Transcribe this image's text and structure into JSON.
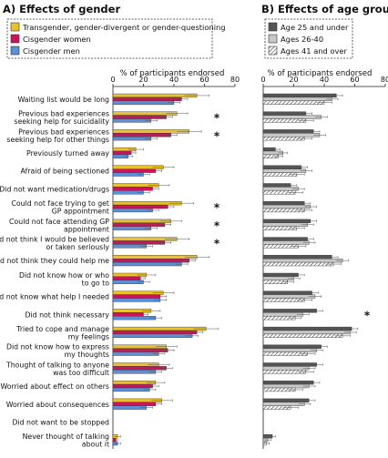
{
  "chart_data": [
    {
      "type": "bar",
      "panel_label": "A)",
      "title": "Effects of gender",
      "xlabel": "% of participants endorsed",
      "xlim": [
        0,
        80
      ],
      "xticks": [
        "0",
        "20",
        "40",
        "60",
        "80"
      ],
      "legend_position": "top",
      "categories": [
        "Waiting list would be long",
        "Previous bad experiences seeking help for suicidality",
        "Previous bad experiences seeking help for other things",
        "Previously turned away",
        "Afraid of being sectioned",
        "Did not want medication/drugs",
        "Could not face trying to get GP appointment",
        "Could not face attending GP appointment",
        "Did not think I would be believed or taken seriously",
        "Did not think they could help me",
        "Did not know how or who to go to",
        "Did not know what help I needed",
        "Did not think necessary",
        "Tried to cope and manage my feelings",
        "Did not know how to express my thoughts",
        "Thought of talking to anyone was too difficult",
        "Worried about effect on others",
        "Worried about consequences",
        "Did not want to be stopped",
        "Never thought of talking about it"
      ],
      "significance_marks": [
        "",
        "*",
        "*",
        "",
        "",
        "",
        "*",
        "*",
        "*",
        "",
        "",
        "",
        "",
        "",
        "",
        "",
        "",
        "",
        "",
        ""
      ],
      "series": [
        {
          "name": "Transgender, gender-divergent or gender-questioning",
          "color": "#e8c12f",
          "values": [
            55,
            42,
            50,
            15,
            33,
            30,
            45,
            38,
            42,
            55,
            22,
            33,
            25,
            61,
            35,
            30,
            28,
            32,
            0,
            3
          ],
          "errors": [
            8,
            7,
            8,
            5,
            7,
            7,
            8,
            7,
            8,
            8,
            6,
            7,
            6,
            8,
            7,
            7,
            6,
            7,
            0,
            2
          ]
        },
        {
          "name": "Cisgender women",
          "color": "#c7175a",
          "values": [
            45,
            35,
            38,
            12,
            28,
            26,
            36,
            34,
            34,
            50,
            18,
            31,
            20,
            55,
            36,
            35,
            26,
            28,
            0,
            2
          ],
          "errors": [
            4,
            4,
            4,
            3,
            4,
            4,
            4,
            4,
            4,
            4,
            3,
            4,
            3,
            4,
            4,
            4,
            4,
            4,
            0,
            1
          ]
        },
        {
          "name": "Cisgender men",
          "color": "#5b8fd6",
          "values": [
            40,
            25,
            25,
            10,
            20,
            20,
            26,
            25,
            22,
            45,
            20,
            31,
            28,
            52,
            30,
            28,
            24,
            22,
            0,
            3
          ],
          "errors": [
            4,
            4,
            4,
            3,
            4,
            4,
            4,
            4,
            4,
            4,
            4,
            4,
            4,
            4,
            4,
            4,
            4,
            4,
            0,
            2
          ]
        }
      ]
    },
    {
      "type": "bar",
      "panel_label": "B)",
      "title": "Effects of age group",
      "xlabel": "% of participants endorsed",
      "xlim": [
        0,
        80
      ],
      "xticks": [
        "0",
        "20",
        "40",
        "60",
        "80"
      ],
      "legend_position": "top",
      "significance_marks": [
        "",
        "",
        "",
        "",
        "",
        "",
        "",
        "",
        "",
        "",
        "",
        "",
        "*",
        "",
        "",
        "",
        "",
        "",
        "",
        ""
      ],
      "series": [
        {
          "name": "Age 25 and under",
          "color": "#555555",
          "pattern": "solid",
          "values": [
            48,
            28,
            33,
            8,
            25,
            18,
            27,
            31,
            29,
            45,
            23,
            32,
            35,
            58,
            38,
            35,
            33,
            30,
            0,
            6
          ],
          "errors": [
            4,
            4,
            4,
            3,
            4,
            4,
            4,
            4,
            4,
            4,
            4,
            4,
            4,
            4,
            4,
            4,
            4,
            4,
            0,
            2
          ]
        },
        {
          "name": "Ages 26-40",
          "color": "#c8c8c8",
          "pattern": "solid",
          "values": [
            45,
            38,
            37,
            13,
            28,
            23,
            31,
            29,
            30,
            52,
            20,
            34,
            26,
            57,
            35,
            30,
            30,
            27,
            0,
            3
          ],
          "errors": [
            4,
            4,
            4,
            3,
            4,
            4,
            4,
            4,
            4,
            4,
            4,
            4,
            4,
            4,
            4,
            4,
            4,
            4,
            0,
            2
          ]
        },
        {
          "name": "Ages 41 and over",
          "color": "#ffffff",
          "pattern": "hatch",
          "values": [
            40,
            28,
            27,
            10,
            22,
            21,
            27,
            22,
            23,
            46,
            16,
            27,
            21,
            52,
            29,
            28,
            21,
            18,
            0,
            2
          ],
          "errors": [
            5,
            5,
            5,
            3,
            5,
            5,
            5,
            5,
            5,
            5,
            4,
            5,
            4,
            5,
            5,
            5,
            5,
            5,
            0,
            2
          ]
        }
      ]
    }
  ]
}
